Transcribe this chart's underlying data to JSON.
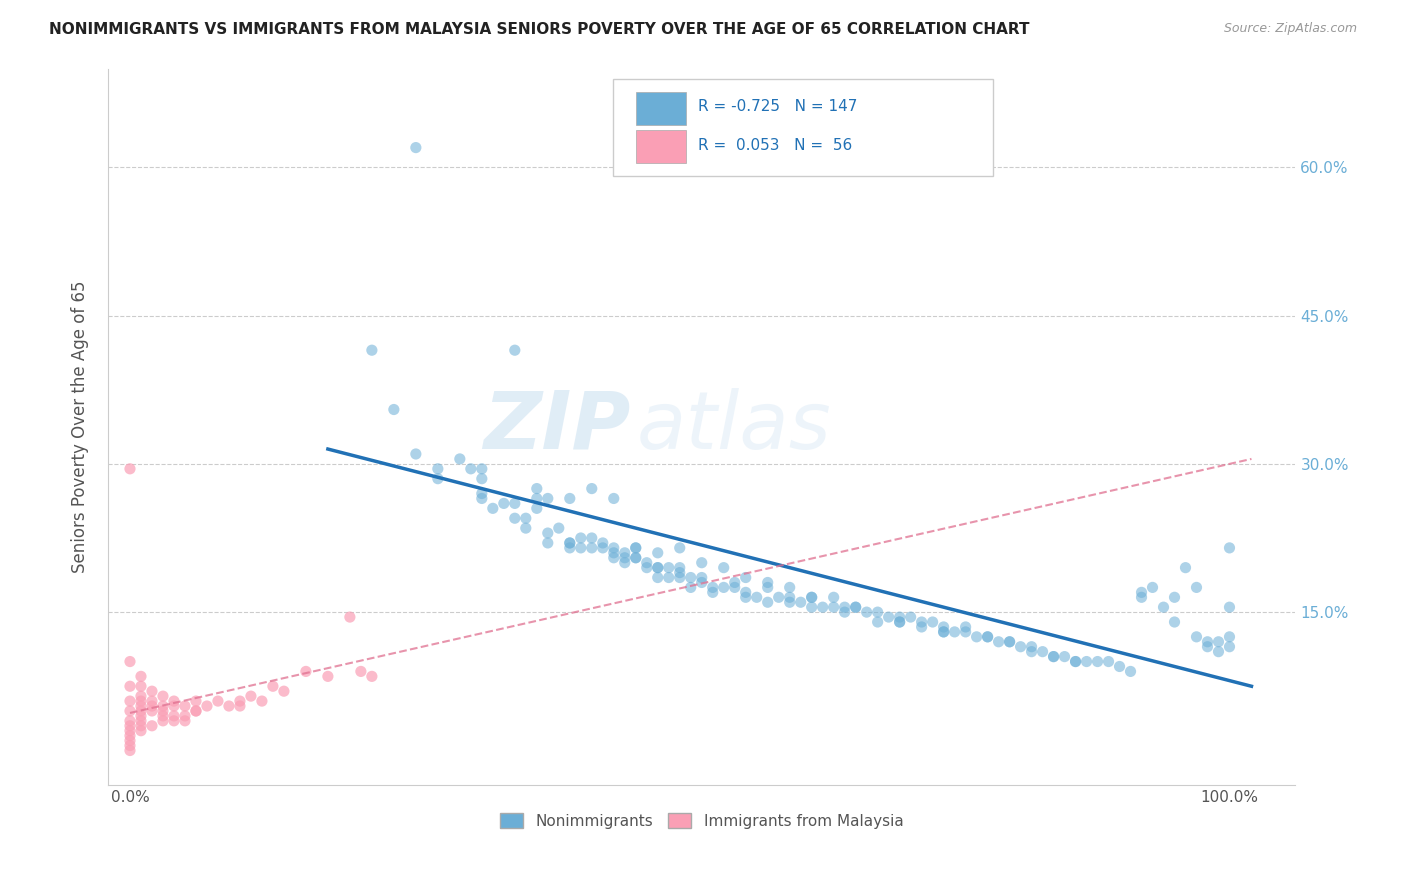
{
  "title": "NONIMMIGRANTS VS IMMIGRANTS FROM MALAYSIA SENIORS POVERTY OVER THE AGE OF 65 CORRELATION CHART",
  "source": "Source: ZipAtlas.com",
  "ylabel_label": "Seniors Poverty Over the Age of 65",
  "right_yticks": [
    "60.0%",
    "45.0%",
    "30.0%",
    "15.0%"
  ],
  "right_ytick_vals": [
    0.6,
    0.45,
    0.3,
    0.15
  ],
  "legend_blue_r": "-0.725",
  "legend_blue_n": "147",
  "legend_pink_r": "0.053",
  "legend_pink_n": "56",
  "blue_color": "#6baed6",
  "blue_line_color": "#2171b5",
  "pink_color": "#fa9fb5",
  "pink_line_color": "#e07090",
  "watermark_zip": "ZIP",
  "watermark_atlas": "atlas",
  "blue_scatter_x": [
    0.22,
    0.24,
    0.26,
    0.26,
    0.28,
    0.28,
    0.3,
    0.31,
    0.32,
    0.32,
    0.32,
    0.32,
    0.33,
    0.34,
    0.35,
    0.35,
    0.36,
    0.36,
    0.37,
    0.37,
    0.37,
    0.38,
    0.38,
    0.39,
    0.4,
    0.4,
    0.4,
    0.41,
    0.41,
    0.42,
    0.42,
    0.43,
    0.43,
    0.44,
    0.44,
    0.44,
    0.45,
    0.45,
    0.45,
    0.46,
    0.46,
    0.46,
    0.47,
    0.47,
    0.48,
    0.48,
    0.48,
    0.49,
    0.49,
    0.5,
    0.5,
    0.5,
    0.51,
    0.51,
    0.52,
    0.52,
    0.53,
    0.53,
    0.54,
    0.55,
    0.55,
    0.56,
    0.56,
    0.57,
    0.58,
    0.58,
    0.59,
    0.6,
    0.6,
    0.61,
    0.62,
    0.62,
    0.63,
    0.64,
    0.65,
    0.65,
    0.66,
    0.67,
    0.68,
    0.69,
    0.7,
    0.7,
    0.71,
    0.72,
    0.73,
    0.74,
    0.74,
    0.75,
    0.76,
    0.77,
    0.78,
    0.79,
    0.8,
    0.81,
    0.82,
    0.83,
    0.84,
    0.85,
    0.86,
    0.87,
    0.88,
    0.89,
    0.9,
    0.91,
    0.92,
    0.92,
    0.93,
    0.94,
    0.95,
    0.95,
    0.96,
    0.97,
    0.97,
    0.98,
    0.98,
    0.99,
    0.99,
    1.0,
    1.0,
    1.0,
    1.0,
    0.35,
    0.38,
    0.4,
    0.42,
    0.44,
    0.46,
    0.48,
    0.5,
    0.52,
    0.54,
    0.56,
    0.58,
    0.6,
    0.62,
    0.64,
    0.66,
    0.68,
    0.7,
    0.72,
    0.74,
    0.76,
    0.78,
    0.8,
    0.82,
    0.84,
    0.86
  ],
  "blue_scatter_y": [
    0.415,
    0.355,
    0.31,
    0.62,
    0.295,
    0.285,
    0.305,
    0.295,
    0.27,
    0.265,
    0.285,
    0.295,
    0.255,
    0.26,
    0.26,
    0.245,
    0.245,
    0.235,
    0.275,
    0.265,
    0.255,
    0.22,
    0.23,
    0.235,
    0.22,
    0.215,
    0.22,
    0.225,
    0.215,
    0.225,
    0.215,
    0.215,
    0.22,
    0.215,
    0.21,
    0.205,
    0.205,
    0.21,
    0.2,
    0.205,
    0.205,
    0.215,
    0.195,
    0.2,
    0.195,
    0.185,
    0.195,
    0.185,
    0.195,
    0.185,
    0.19,
    0.195,
    0.185,
    0.175,
    0.18,
    0.185,
    0.17,
    0.175,
    0.175,
    0.175,
    0.18,
    0.17,
    0.165,
    0.165,
    0.175,
    0.16,
    0.165,
    0.165,
    0.16,
    0.16,
    0.155,
    0.165,
    0.155,
    0.155,
    0.15,
    0.155,
    0.155,
    0.15,
    0.14,
    0.145,
    0.14,
    0.14,
    0.145,
    0.135,
    0.14,
    0.13,
    0.135,
    0.13,
    0.13,
    0.125,
    0.125,
    0.12,
    0.12,
    0.115,
    0.115,
    0.11,
    0.105,
    0.105,
    0.1,
    0.1,
    0.1,
    0.1,
    0.095,
    0.09,
    0.165,
    0.17,
    0.175,
    0.155,
    0.165,
    0.14,
    0.195,
    0.175,
    0.125,
    0.12,
    0.115,
    0.11,
    0.12,
    0.215,
    0.155,
    0.125,
    0.115,
    0.415,
    0.265,
    0.265,
    0.275,
    0.265,
    0.215,
    0.21,
    0.215,
    0.2,
    0.195,
    0.185,
    0.18,
    0.175,
    0.165,
    0.165,
    0.155,
    0.15,
    0.145,
    0.14,
    0.13,
    0.135,
    0.125,
    0.12,
    0.11,
    0.105,
    0.1
  ],
  "pink_scatter_x": [
    0.0,
    0.0,
    0.0,
    0.0,
    0.0,
    0.0,
    0.0,
    0.0,
    0.0,
    0.0,
    0.0,
    0.0,
    0.01,
    0.01,
    0.01,
    0.01,
    0.01,
    0.01,
    0.01,
    0.01,
    0.01,
    0.01,
    0.02,
    0.02,
    0.02,
    0.02,
    0.02,
    0.03,
    0.03,
    0.03,
    0.03,
    0.03,
    0.04,
    0.04,
    0.04,
    0.04,
    0.05,
    0.05,
    0.05,
    0.06,
    0.06,
    0.07,
    0.08,
    0.09,
    0.1,
    0.1,
    0.11,
    0.12,
    0.13,
    0.14,
    0.16,
    0.18,
    0.2,
    0.21,
    0.22,
    0.06
  ],
  "pink_scatter_y": [
    0.295,
    0.1,
    0.075,
    0.06,
    0.05,
    0.04,
    0.035,
    0.03,
    0.025,
    0.02,
    0.015,
    0.01,
    0.085,
    0.075,
    0.065,
    0.06,
    0.055,
    0.05,
    0.045,
    0.04,
    0.035,
    0.03,
    0.07,
    0.06,
    0.055,
    0.05,
    0.035,
    0.065,
    0.055,
    0.05,
    0.045,
    0.04,
    0.06,
    0.055,
    0.045,
    0.04,
    0.055,
    0.045,
    0.04,
    0.06,
    0.05,
    0.055,
    0.06,
    0.055,
    0.06,
    0.055,
    0.065,
    0.06,
    0.075,
    0.07,
    0.09,
    0.085,
    0.145,
    0.09,
    0.085,
    0.05
  ],
  "blue_line_x": [
    0.18,
    1.02
  ],
  "blue_line_y": [
    0.315,
    0.075
  ],
  "pink_line_x": [
    0.0,
    1.02
  ],
  "pink_line_y": [
    0.048,
    0.305
  ],
  "xlim": [
    -0.02,
    1.06
  ],
  "ylim": [
    -0.025,
    0.7
  ],
  "xtick_positions": [
    0.0,
    0.1,
    0.2,
    0.3,
    0.4,
    0.5,
    0.6,
    0.7,
    0.8,
    0.9,
    1.0
  ],
  "xtick_labels": [
    "0.0%",
    "",
    "",
    "",
    "",
    "",
    "",
    "",
    "",
    "",
    "100.0%"
  ],
  "ytick_positions": [
    0.0,
    0.15,
    0.3,
    0.45,
    0.6
  ],
  "background_color": "#ffffff"
}
